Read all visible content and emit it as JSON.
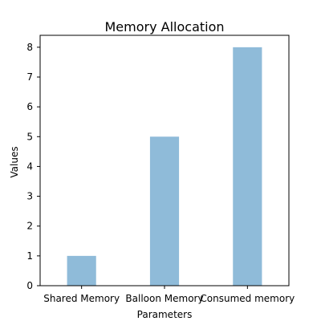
{
  "chart_data": {
    "type": "bar",
    "title": "Memory Allocation",
    "xlabel": "Parameters",
    "ylabel": "Values",
    "categories": [
      "Shared Memory",
      "Balloon Memory",
      "Consumed memory"
    ],
    "values": [
      1,
      5,
      8
    ],
    "ylim": [
      0,
      8.4
    ],
    "yticks": [
      0,
      1,
      2,
      3,
      4,
      5,
      6,
      7,
      8
    ],
    "bar_color": "#8fbbd9",
    "grid": false,
    "legend": "none"
  }
}
